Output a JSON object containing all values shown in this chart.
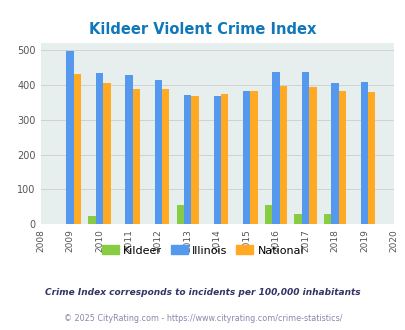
{
  "title": "Kildeer Violent Crime Index",
  "years": [
    2009,
    2010,
    2011,
    2012,
    2013,
    2014,
    2015,
    2016,
    2017,
    2018,
    2019
  ],
  "kildeer": [
    0,
    25,
    0,
    0,
    57,
    0,
    0,
    55,
    30,
    30,
    0
  ],
  "illinois": [
    498,
    435,
    428,
    414,
    372,
    369,
    383,
    438,
    438,
    405,
    408
  ],
  "national": [
    430,
    405,
    387,
    387,
    367,
    374,
    383,
    397,
    394,
    381,
    379
  ],
  "kildeer_color": "#88cc44",
  "illinois_color": "#5599ee",
  "national_color": "#ffaa22",
  "bg_color": "#e6eeee",
  "title_color": "#1177bb",
  "ylim": [
    0,
    520
  ],
  "yticks": [
    0,
    100,
    200,
    300,
    400,
    500
  ],
  "footnote1": "Crime Index corresponds to incidents per 100,000 inhabitants",
  "footnote2": "© 2025 CityRating.com - https://www.cityrating.com/crime-statistics/",
  "footnote1_color": "#333366",
  "footnote2_color": "#8888aa",
  "legend_labels": [
    "Kildeer",
    "Illinois",
    "National"
  ]
}
